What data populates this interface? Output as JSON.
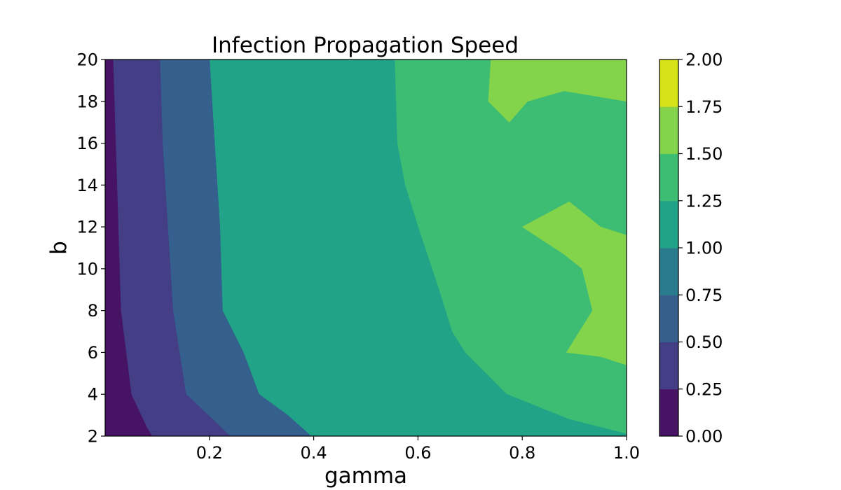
{
  "chart_data": {
    "type": "contourf",
    "title": "Infection Propagation Speed",
    "xlabel": "gamma",
    "ylabel": "b",
    "xlim": [
      0.0,
      1.0
    ],
    "ylim": [
      2,
      20
    ],
    "x_ticks": [
      0.2,
      0.4,
      0.6,
      0.8,
      1.0
    ],
    "x_tick_labels": [
      "0.2",
      "0.4",
      "0.6",
      "0.8",
      "1.0"
    ],
    "y_ticks": [
      2,
      4,
      6,
      8,
      10,
      12,
      14,
      16,
      18,
      20
    ],
    "y_tick_labels": [
      "2",
      "4",
      "6",
      "8",
      "10",
      "12",
      "14",
      "16",
      "18",
      "20"
    ],
    "grid": false,
    "colorbar": {
      "position": "right",
      "levels": [
        0.0,
        0.25,
        0.5,
        0.75,
        1.0,
        1.25,
        1.5,
        1.75,
        2.0
      ],
      "level_labels": [
        "0.00",
        "0.25",
        "0.50",
        "0.75",
        "1.00",
        "1.25",
        "1.50",
        "1.75",
        "2.00"
      ],
      "colors": [
        "#471365",
        "#433e85",
        "#355f8d",
        "#287c8e",
        "#20a386",
        "#3dbc74",
        "#84d44b",
        "#d8e219"
      ]
    },
    "contour_boundaries": [
      {
        "level": 0.25,
        "points": [
          [
            0.0,
            20
          ],
          [
            0.015,
            20
          ],
          [
            0.02,
            16
          ],
          [
            0.025,
            12
          ],
          [
            0.03,
            8
          ],
          [
            0.04,
            6
          ],
          [
            0.05,
            4
          ],
          [
            0.08,
            2.4
          ],
          [
            0.09,
            2
          ],
          [
            0.0,
            2
          ]
        ]
      },
      {
        "level": 0.5,
        "points": [
          [
            0.105,
            20
          ],
          [
            0.11,
            16
          ],
          [
            0.12,
            12
          ],
          [
            0.13,
            8
          ],
          [
            0.155,
            4
          ],
          [
            0.24,
            2
          ]
        ]
      },
      {
        "level": 0.75,
        "points": [
          [
            0.2,
            20
          ],
          [
            0.21,
            16
          ],
          [
            0.22,
            12
          ],
          [
            0.225,
            8
          ],
          [
            0.265,
            6
          ],
          [
            0.295,
            4
          ],
          [
            0.35,
            3
          ],
          [
            0.395,
            2
          ]
        ]
      },
      {
        "level": 1.0,
        "points": [
          [
            0.335,
            20
          ],
          [
            0.335,
            16
          ],
          [
            0.34,
            12
          ],
          [
            0.38,
            10
          ],
          [
            0.41,
            8
          ],
          [
            0.425,
            6
          ],
          [
            0.44,
            4
          ],
          [
            0.55,
            2.3
          ],
          [
            0.595,
            2
          ]
        ]
      },
      {
        "level": 1.25,
        "points": [
          [
            0.555,
            20
          ],
          [
            0.56,
            16
          ],
          [
            0.575,
            14
          ],
          [
            0.6,
            12
          ],
          [
            0.64,
            9
          ],
          [
            0.665,
            7
          ],
          [
            0.69,
            6
          ],
          [
            0.77,
            4
          ],
          [
            0.89,
            2.8
          ],
          [
            1.0,
            2.1
          ]
        ]
      },
      {
        "level": 1.5,
        "points": [
          [
            0.74,
            20
          ],
          [
            0.735,
            18
          ],
          [
            0.775,
            17
          ],
          [
            0.81,
            18
          ],
          [
            0.88,
            18.5
          ],
          [
            1.0,
            18
          ]
        ]
      },
      {
        "level": 1.5,
        "points": [
          [
            1.0,
            11.6
          ],
          [
            0.95,
            12
          ],
          [
            0.89,
            13.2
          ],
          [
            0.8,
            12
          ],
          [
            0.88,
            10.7
          ],
          [
            0.915,
            10
          ],
          [
            0.935,
            8
          ],
          [
            0.885,
            6
          ],
          [
            0.95,
            5.8
          ],
          [
            1.0,
            5.4
          ]
        ]
      },
      {
        "level": 1.75,
        "points": [
          [
            0.82,
            20
          ],
          [
            0.93,
            19.2
          ],
          [
            1.0,
            19.3
          ]
        ]
      },
      {
        "level": 1.75,
        "points": [
          [
            1.0,
            10.3
          ],
          [
            0.99,
            10
          ],
          [
            1.0,
            9.6
          ]
        ]
      }
    ]
  }
}
